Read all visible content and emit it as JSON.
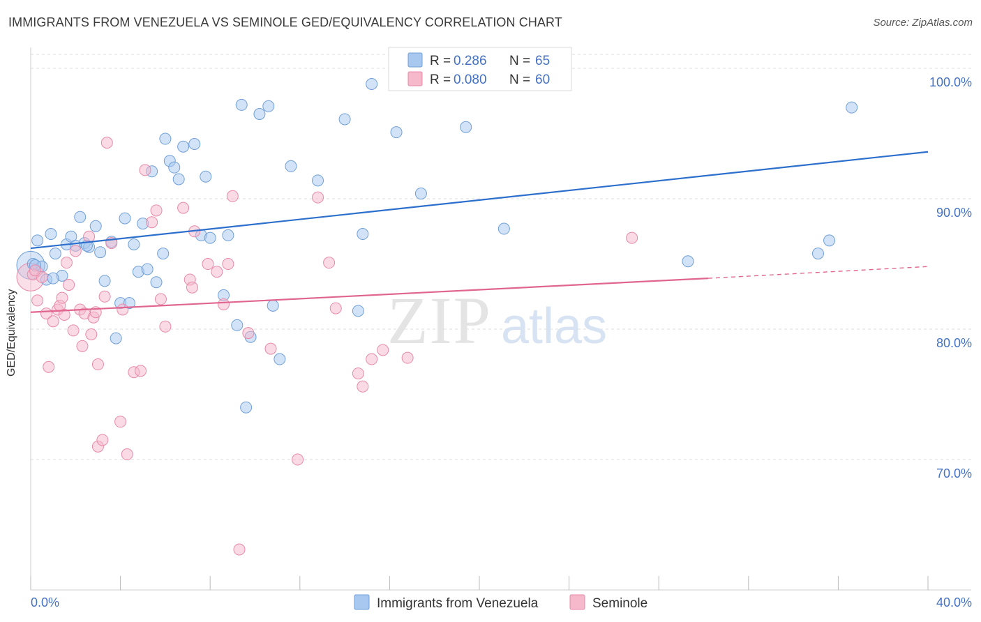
{
  "title": "IMMIGRANTS FROM VENEZUELA VS SEMINOLE GED/EQUIVALENCY CORRELATION CHART",
  "source": "Source: ZipAtlas.com",
  "watermark": {
    "zip": "ZIP",
    "atlas": "atlas"
  },
  "colors": {
    "blue_fill": "#a8c8f0",
    "blue_stroke": "#6f9fd8",
    "blue_line": "#2d6fcc",
    "pink_fill": "#f6b8cb",
    "pink_stroke": "#e88aa8",
    "pink_line": "#e0668f",
    "axis_text": "#4472c4",
    "grid": "#dddddd"
  },
  "legend": [
    {
      "r_label": "R =",
      "r_value": "0.286",
      "n_label": "N =",
      "n_value": "65"
    },
    {
      "r_label": "R =",
      "r_value": "0.080",
      "n_label": "N =",
      "n_value": "60"
    }
  ],
  "chart_data": {
    "type": "scatter",
    "xlabel": "",
    "ylabel": "GED/Equivalency",
    "xlim": [
      0,
      40
    ],
    "ylim": [
      60,
      101.5
    ],
    "x_tick_labels": [
      "0.0%",
      "40.0%"
    ],
    "y_ticks": [
      70,
      80,
      90,
      100
    ],
    "y_tick_labels": [
      "70.0%",
      "80.0%",
      "90.0%",
      "100.0%"
    ],
    "grid": "horizontal dashed",
    "series": [
      {
        "name": "Immigrants from Venezuela",
        "color": "blue",
        "trend": {
          "x": [
            0,
            40
          ],
          "y": [
            86.2,
            93.6
          ]
        },
        "points": [
          [
            0.1,
            85.0
          ],
          [
            0.3,
            86.8
          ],
          [
            0.5,
            84.8
          ],
          [
            0.7,
            83.8
          ],
          [
            0.9,
            87.3
          ],
          [
            1.1,
            85.8
          ],
          [
            1.4,
            84.1
          ],
          [
            1.6,
            86.5
          ],
          [
            1.8,
            87.1
          ],
          [
            2.0,
            86.4
          ],
          [
            2.2,
            88.6
          ],
          [
            2.4,
            86.6
          ],
          [
            2.6,
            86.3
          ],
          [
            2.9,
            87.9
          ],
          [
            3.1,
            85.9
          ],
          [
            3.3,
            83.7
          ],
          [
            3.6,
            86.7
          ],
          [
            3.8,
            79.3
          ],
          [
            4.0,
            82.0
          ],
          [
            4.2,
            88.5
          ],
          [
            4.4,
            82.0
          ],
          [
            4.6,
            86.5
          ],
          [
            4.8,
            84.4
          ],
          [
            5.0,
            88.1
          ],
          [
            5.2,
            84.6
          ],
          [
            5.4,
            92.1
          ],
          [
            5.6,
            83.6
          ],
          [
            5.9,
            85.8
          ],
          [
            6.0,
            94.6
          ],
          [
            6.2,
            92.9
          ],
          [
            6.4,
            92.4
          ],
          [
            6.6,
            91.5
          ],
          [
            6.8,
            94.0
          ],
          [
            7.3,
            94.2
          ],
          [
            7.6,
            87.2
          ],
          [
            7.8,
            91.7
          ],
          [
            8.0,
            87.0
          ],
          [
            8.6,
            82.6
          ],
          [
            8.8,
            87.2
          ],
          [
            9.2,
            80.3
          ],
          [
            9.4,
            97.2
          ],
          [
            9.6,
            74.0
          ],
          [
            9.8,
            79.4
          ],
          [
            10.2,
            96.5
          ],
          [
            10.6,
            97.1
          ],
          [
            10.8,
            81.8
          ],
          [
            11.1,
            77.7
          ],
          [
            11.6,
            92.5
          ],
          [
            12.8,
            91.4
          ],
          [
            14.0,
            96.1
          ],
          [
            14.6,
            81.4
          ],
          [
            14.8,
            87.3
          ],
          [
            15.2,
            98.8
          ],
          [
            16.3,
            95.1
          ],
          [
            17.4,
            90.4
          ],
          [
            19.4,
            95.5
          ],
          [
            20.5,
            100.0
          ],
          [
            21.1,
            87.7
          ],
          [
            29.3,
            85.2
          ],
          [
            35.1,
            85.8
          ],
          [
            35.6,
            86.8
          ],
          [
            36.6,
            97.0
          ],
          [
            0.2,
            84.9
          ],
          [
            1.0,
            83.9
          ],
          [
            2.5,
            86.4
          ]
        ]
      },
      {
        "name": "Seminole",
        "color": "pink",
        "trend": {
          "x": [
            0,
            30.2
          ],
          "y": [
            81.3,
            83.9
          ]
        },
        "trend_dashed": {
          "x": [
            30.2,
            40
          ],
          "y": [
            83.9,
            84.8
          ]
        },
        "points": [
          [
            0.1,
            84.2
          ],
          [
            0.3,
            82.2
          ],
          [
            0.5,
            84.0
          ],
          [
            0.7,
            81.2
          ],
          [
            0.8,
            77.1
          ],
          [
            1.0,
            80.6
          ],
          [
            1.2,
            81.5
          ],
          [
            1.3,
            81.8
          ],
          [
            1.5,
            81.1
          ],
          [
            1.6,
            85.1
          ],
          [
            1.7,
            83.4
          ],
          [
            1.9,
            79.9
          ],
          [
            2.0,
            86.0
          ],
          [
            2.2,
            81.5
          ],
          [
            2.3,
            78.7
          ],
          [
            2.4,
            81.2
          ],
          [
            2.6,
            87.1
          ],
          [
            2.7,
            79.6
          ],
          [
            2.8,
            80.9
          ],
          [
            3.0,
            71.0
          ],
          [
            3.0,
            77.3
          ],
          [
            3.2,
            71.5
          ],
          [
            3.3,
            82.5
          ],
          [
            3.4,
            94.3
          ],
          [
            3.6,
            86.6
          ],
          [
            4.0,
            72.9
          ],
          [
            4.1,
            81.5
          ],
          [
            4.3,
            70.4
          ],
          [
            4.6,
            76.7
          ],
          [
            4.9,
            76.8
          ],
          [
            5.1,
            92.2
          ],
          [
            5.4,
            88.2
          ],
          [
            5.6,
            89.1
          ],
          [
            5.8,
            82.3
          ],
          [
            6.0,
            80.2
          ],
          [
            6.8,
            89.3
          ],
          [
            7.1,
            83.8
          ],
          [
            7.2,
            83.2
          ],
          [
            7.3,
            87.5
          ],
          [
            7.9,
            85.0
          ],
          [
            8.3,
            84.4
          ],
          [
            8.6,
            81.9
          ],
          [
            8.8,
            85.0
          ],
          [
            9.0,
            90.2
          ],
          [
            9.3,
            63.1
          ],
          [
            9.7,
            79.7
          ],
          [
            10.7,
            78.5
          ],
          [
            11.9,
            70.0
          ],
          [
            12.8,
            90.1
          ],
          [
            13.3,
            85.1
          ],
          [
            13.6,
            81.6
          ],
          [
            14.6,
            76.6
          ],
          [
            14.8,
            75.6
          ],
          [
            15.2,
            77.7
          ],
          [
            15.7,
            78.4
          ],
          [
            16.8,
            77.8
          ],
          [
            26.8,
            87.0
          ],
          [
            0.2,
            84.5
          ],
          [
            1.4,
            82.4
          ],
          [
            2.9,
            81.3
          ]
        ]
      }
    ],
    "bubble_points": [
      {
        "series": "Immigrants from Venezuela",
        "x": 0.0,
        "y": 84.9
      },
      {
        "series": "Seminole",
        "x": 0.0,
        "y": 84.0
      }
    ]
  }
}
